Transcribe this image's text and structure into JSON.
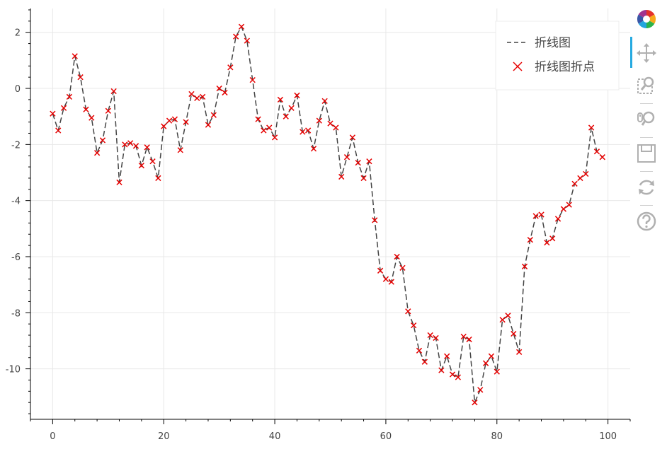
{
  "chart_data": {
    "type": "line",
    "xlim": [
      -4,
      104
    ],
    "ylim": [
      -11.8,
      2.85
    ],
    "x_ticks": [
      0,
      20,
      40,
      60,
      80,
      100
    ],
    "y_ticks": [
      2,
      0,
      -2,
      -4,
      -6,
      -8,
      -10
    ],
    "grid": true,
    "legend_placement": "top-right",
    "legend": [
      {
        "label": "折线图",
        "marker": "dashed-line"
      },
      {
        "label": "折线图折点",
        "marker": "x"
      }
    ],
    "series": [
      {
        "name": "折线图",
        "style": "dashed",
        "color": "#444444",
        "x": [
          0,
          1,
          2,
          3,
          4,
          5,
          6,
          7,
          8,
          9,
          10,
          11,
          12,
          13,
          14,
          15,
          16,
          17,
          18,
          19,
          20,
          21,
          22,
          23,
          24,
          25,
          26,
          27,
          28,
          29,
          30,
          31,
          32,
          33,
          34,
          35,
          36,
          37,
          38,
          39,
          40,
          41,
          42,
          43,
          44,
          45,
          46,
          47,
          48,
          49,
          50,
          51,
          52,
          53,
          54,
          55,
          56,
          57,
          58,
          59,
          60,
          61,
          62,
          63,
          64,
          65,
          66,
          67,
          68,
          69,
          70,
          71,
          72,
          73,
          74,
          75,
          76,
          77,
          78,
          79,
          80,
          81,
          82,
          83,
          84,
          85,
          86,
          87,
          88,
          89,
          90,
          91,
          92,
          93,
          94,
          95,
          96,
          97,
          98,
          99
        ],
        "y": [
          -0.9,
          -1.5,
          -0.7,
          -0.3,
          1.15,
          0.4,
          -0.75,
          -1.05,
          -2.3,
          -1.85,
          -0.8,
          -0.1,
          -3.35,
          -2.0,
          -1.95,
          -2.05,
          -2.75,
          -2.1,
          -2.6,
          -3.2,
          -1.35,
          -1.15,
          -1.1,
          -2.2,
          -1.2,
          -0.2,
          -0.35,
          -0.3,
          -1.3,
          -0.95,
          0.0,
          -0.15,
          0.75,
          1.85,
          2.2,
          1.7,
          0.3,
          -1.1,
          -1.5,
          -1.4,
          -1.75,
          -0.4,
          -1.0,
          -0.7,
          -0.25,
          -1.55,
          -1.5,
          -2.15,
          -1.15,
          -0.45,
          -1.25,
          -1.4,
          -3.15,
          -2.45,
          -1.75,
          -2.65,
          -3.2,
          -2.6,
          -4.7,
          -6.5,
          -6.8,
          -6.9,
          -6.0,
          -6.4,
          -7.95,
          -8.45,
          -9.35,
          -9.75,
          -8.8,
          -8.9,
          -10.05,
          -9.55,
          -10.2,
          -10.3,
          -8.85,
          -8.95,
          -11.2,
          -10.75,
          -9.8,
          -9.55,
          -10.1,
          -8.25,
          -8.1,
          -8.75,
          -9.4,
          -6.35,
          -5.4,
          -4.55,
          -4.5,
          -5.5,
          -5.35,
          -4.65,
          -4.3,
          -4.15,
          -3.4,
          -3.2,
          -3.05,
          -1.4,
          -2.25,
          -2.45
        ]
      },
      {
        "name": "折线图折点",
        "style": "x-markers",
        "color": "#e60000",
        "same_points_as": "折线图"
      }
    ]
  },
  "toolbar": {
    "items": [
      {
        "name": "bokeh-logo",
        "icon": "bokeh-logo-icon"
      },
      {
        "name": "pan-tool",
        "icon": "pan-icon",
        "active": true
      },
      {
        "name": "box-zoom-tool",
        "icon": "box-zoom-icon"
      },
      {
        "name": "wheel-zoom-tool",
        "icon": "wheel-zoom-icon"
      },
      {
        "name": "save-tool",
        "icon": "save-icon"
      },
      {
        "name": "reset-tool",
        "icon": "reset-icon"
      },
      {
        "name": "help-tool",
        "icon": "help-icon"
      }
    ]
  }
}
